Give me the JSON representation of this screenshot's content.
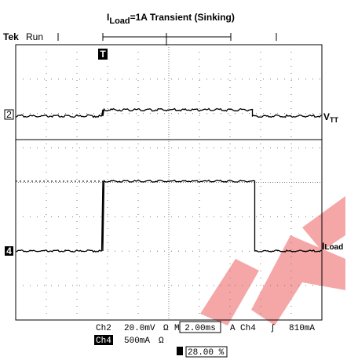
{
  "title": {
    "symbol": "I",
    "subscript": "Load",
    "rest": "=1A   Transient (Sinking)"
  },
  "screen": {
    "brand": "Tek",
    "state": "Run",
    "trigger_marker": "T",
    "channel_2_marker": "2",
    "channel_4_marker": "4",
    "right_label_1": {
      "symbol": "V",
      "subscript": "TT"
    },
    "right_label_2": {
      "symbol": "I",
      "subscript": "Load"
    }
  },
  "status": {
    "ch2_name": "Ch2",
    "ch2_scale": "20.0mV",
    "ch2_coupling": "Ω",
    "timebase": "M 2.00ms",
    "trigger_mode": "A",
    "trigger_source": "Ch4",
    "trigger_slope": "∫",
    "trigger_level": "810mA",
    "ch4_name": "Ch4",
    "ch4_scale": "500mA",
    "ch4_coupling": "Ω",
    "trigger_position": "28.00 %"
  }
}
